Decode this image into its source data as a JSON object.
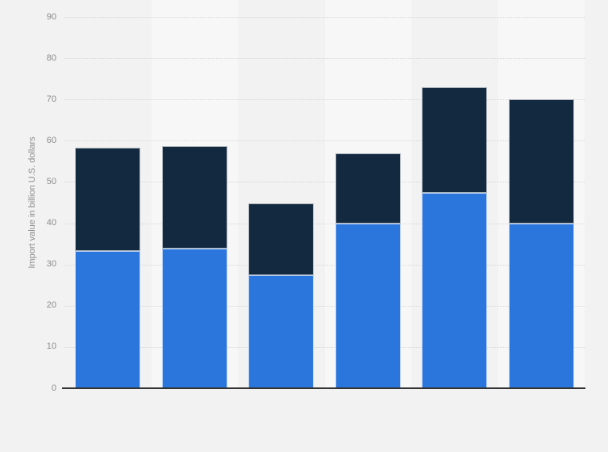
{
  "chart": {
    "y_axis_title": "Import value in billion U.S. dollars",
    "y_ticks": [
      0,
      10,
      20,
      30,
      40,
      50,
      60,
      70,
      80,
      90
    ]
  },
  "chart_data": {
    "type": "bar",
    "stacked": true,
    "orientation": "vertical",
    "title": "",
    "xlabel": "",
    "ylabel": "Import value in billion U.S. dollars",
    "ylim": [
      0,
      90
    ],
    "grid": "horizontal-dotted",
    "legend": "none",
    "categories": [
      "",
      "",
      "",
      "",
      "",
      ""
    ],
    "categories_visible": false,
    "series": [
      {
        "name": "blue-bottom-segment",
        "color": "#2b76dd",
        "values": [
          33.2,
          33.9,
          27.4,
          40.0,
          47.3,
          40.0
        ]
      },
      {
        "name": "dark-navy-top-segment",
        "color": "#13293f",
        "values": [
          25.2,
          24.7,
          17.4,
          16.9,
          25.7,
          30.0
        ]
      }
    ],
    "stack_totals": [
      58.4,
      58.6,
      44.8,
      56.9,
      73.0,
      70.0
    ]
  },
  "colors": {
    "page_background": "#f2f2f2",
    "column_band": "#f7f7f7",
    "gridline": "#d7d7d7",
    "axis_line": "#333333",
    "tick_label": "#8c8c8c",
    "series_blue": "#2b76dd",
    "series_dark_navy": "#13293f"
  }
}
